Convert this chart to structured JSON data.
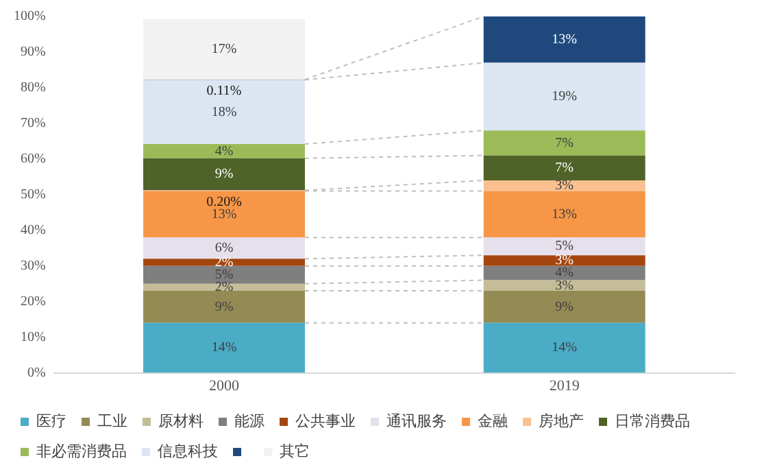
{
  "chart_data": {
    "type": "bar",
    "stacked": true,
    "categories": [
      "2000",
      "2019"
    ],
    "ylim": [
      0,
      100
    ],
    "yticks": [
      {
        "value": 0,
        "label": "0%"
      },
      {
        "value": 10,
        "label": "10%"
      },
      {
        "value": 20,
        "label": "20%"
      },
      {
        "value": 30,
        "label": "30%"
      },
      {
        "value": 40,
        "label": "40%"
      },
      {
        "value": 50,
        "label": "50%"
      },
      {
        "value": 60,
        "label": "60%"
      },
      {
        "value": 70,
        "label": "70%"
      },
      {
        "value": 80,
        "label": "80%"
      },
      {
        "value": 90,
        "label": "90%"
      },
      {
        "value": 100,
        "label": "100%"
      }
    ],
    "grid": false,
    "legend": "bottom",
    "series": [
      {
        "name": "医疗",
        "color": "#4bacc6",
        "values": [
          14,
          14
        ],
        "value_labels": [
          "14%",
          "14%"
        ]
      },
      {
        "name": "工业",
        "color": "#948a54",
        "values": [
          9,
          9
        ],
        "value_labels": [
          "9%",
          "9%"
        ]
      },
      {
        "name": "原材料",
        "color": "#c4bd97",
        "values": [
          2,
          3
        ],
        "value_labels": [
          "2%",
          "3%"
        ]
      },
      {
        "name": "能源",
        "color": "#7f7f7f",
        "values": [
          5,
          4
        ],
        "value_labels": [
          "5%",
          "4%"
        ]
      },
      {
        "name": "公共事业",
        "color": "#a5460f",
        "values": [
          2,
          3
        ],
        "value_labels": [
          "2%",
          "3%"
        ]
      },
      {
        "name": "通讯服务",
        "color": "#e6e0ec",
        "values": [
          6,
          5
        ],
        "value_labels": [
          "6%",
          "5%"
        ]
      },
      {
        "name": "金融",
        "color": "#f79646",
        "values": [
          13,
          13
        ],
        "value_labels": [
          "13%",
          "13%"
        ]
      },
      {
        "name": "房地产",
        "color": "#fac090",
        "values": [
          0.2,
          3
        ],
        "value_labels": [
          "0.20%",
          "3%"
        ]
      },
      {
        "name": "日常消费品",
        "color": "#4f6228",
        "values": [
          9,
          7
        ],
        "value_labels": [
          "9%",
          "7%"
        ]
      },
      {
        "name": "非必需消费品",
        "color": "#9bbb59",
        "values": [
          4,
          7
        ],
        "value_labels": [
          "4%",
          "7%"
        ]
      },
      {
        "name": "信息科技",
        "color": "#dce6f2",
        "values": [
          18,
          19
        ],
        "value_labels": [
          "18%",
          "19%"
        ]
      },
      {
        "color": "#1f497d",
        "values": [
          0.11,
          13
        ],
        "value_labels": [
          "0.11%",
          "13%"
        ]
      },
      {
        "name": "其它",
        "color": "#f2f2f2",
        "values": [
          17,
          null
        ],
        "value_labels": [
          "17%",
          null
        ]
      }
    ]
  }
}
